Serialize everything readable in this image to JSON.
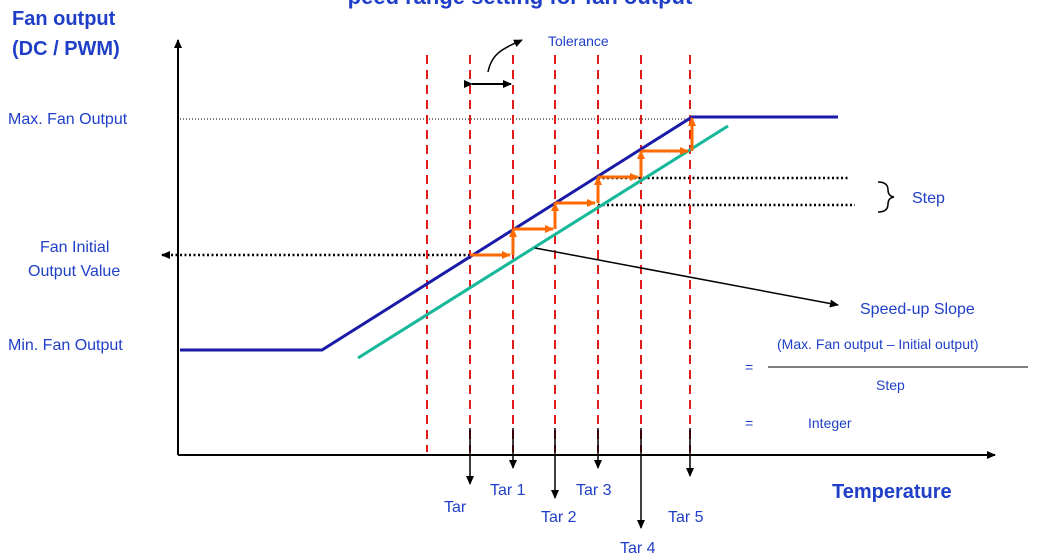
{
  "title_partial": "peed range setting for fan output",
  "y_axis": {
    "title_line1": "Fan output",
    "title_line2": "(DC / PWM)"
  },
  "x_axis": {
    "title": "Temperature"
  },
  "labels": {
    "max_output": "Max. Fan Output",
    "min_output": "Min. Fan Output",
    "initial_line1": "Fan Initial",
    "initial_line2": "Output Value",
    "tolerance": "Tolerance",
    "step": "Step",
    "slope_title": "Speed-up Slope",
    "formula_numerator": "(Max. Fan output – Initial output)",
    "formula_denominator": "Step",
    "equals": "=",
    "integer": "Integer"
  },
  "targets": [
    "Tar",
    "Tar 1",
    "Tar 2",
    "Tar 3",
    "Tar 4",
    "Tar 5"
  ],
  "colors": {
    "text": "#1f3fc8",
    "curve": "#1a1aa8",
    "offset_line": "#16b89a",
    "step_arrows": "#ff6a00",
    "target_lines": "#e01b1b",
    "axis": "#000000"
  }
}
